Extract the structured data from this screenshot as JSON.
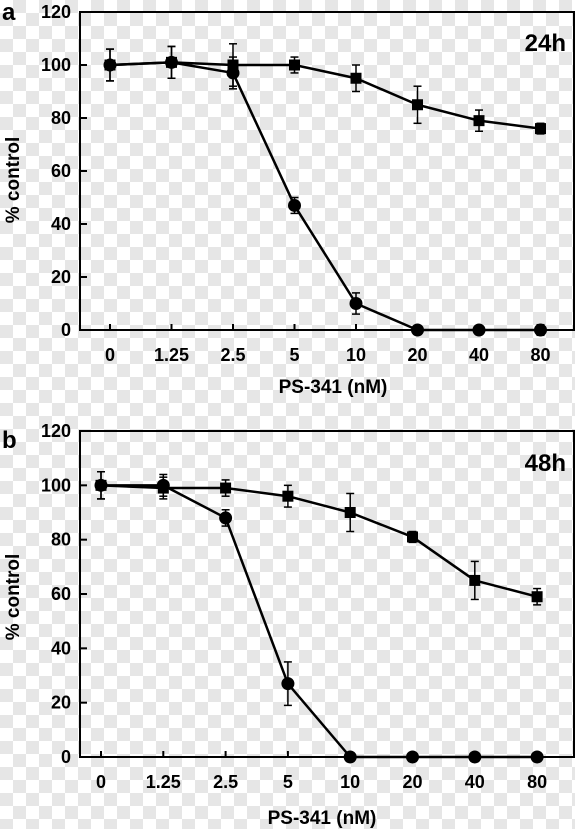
{
  "chart_data": [
    {
      "type": "line",
      "panel_label": "a",
      "annotation": "24h",
      "ylabel": "% control",
      "xlabel": "PS-341 (nM)",
      "categories": [
        "0",
        "1.25",
        "2.5",
        "5",
        "10",
        "20",
        "40",
        "80"
      ],
      "yticks": [
        "0",
        "20",
        "40",
        "60",
        "80",
        "100",
        "120"
      ],
      "ylim": [
        0,
        120
      ],
      "grid": false,
      "series": [
        {
          "marker": "square",
          "values": [
            100,
            101,
            100,
            100,
            95,
            85,
            79,
            76
          ],
          "errors": [
            6,
            6,
            8,
            3,
            5,
            7,
            4,
            2
          ]
        },
        {
          "marker": "circle",
          "values": [
            100,
            101,
            97,
            47,
            10,
            0,
            0,
            0
          ],
          "errors": [
            6,
            6,
            6,
            3,
            4,
            0,
            0,
            2
          ]
        }
      ]
    },
    {
      "type": "line",
      "panel_label": "b",
      "annotation": "48h",
      "ylabel": "% control",
      "xlabel": "PS-341 (nM)",
      "categories": [
        "0",
        "1.25",
        "2.5",
        "5",
        "10",
        "20",
        "40",
        "80"
      ],
      "yticks": [
        "0",
        "20",
        "40",
        "60",
        "80",
        "100",
        "120"
      ],
      "ylim": [
        0,
        120
      ],
      "grid": false,
      "series": [
        {
          "marker": "square",
          "values": [
            100,
            99,
            99,
            96,
            90,
            81,
            65,
            59
          ],
          "errors": [
            5,
            4,
            3,
            4,
            7,
            2,
            7,
            3
          ]
        },
        {
          "marker": "circle",
          "values": [
            100,
            100,
            88,
            27,
            0,
            0,
            0,
            0
          ],
          "errors": [
            5,
            4,
            3,
            8,
            0,
            0,
            0,
            0
          ]
        }
      ]
    }
  ]
}
